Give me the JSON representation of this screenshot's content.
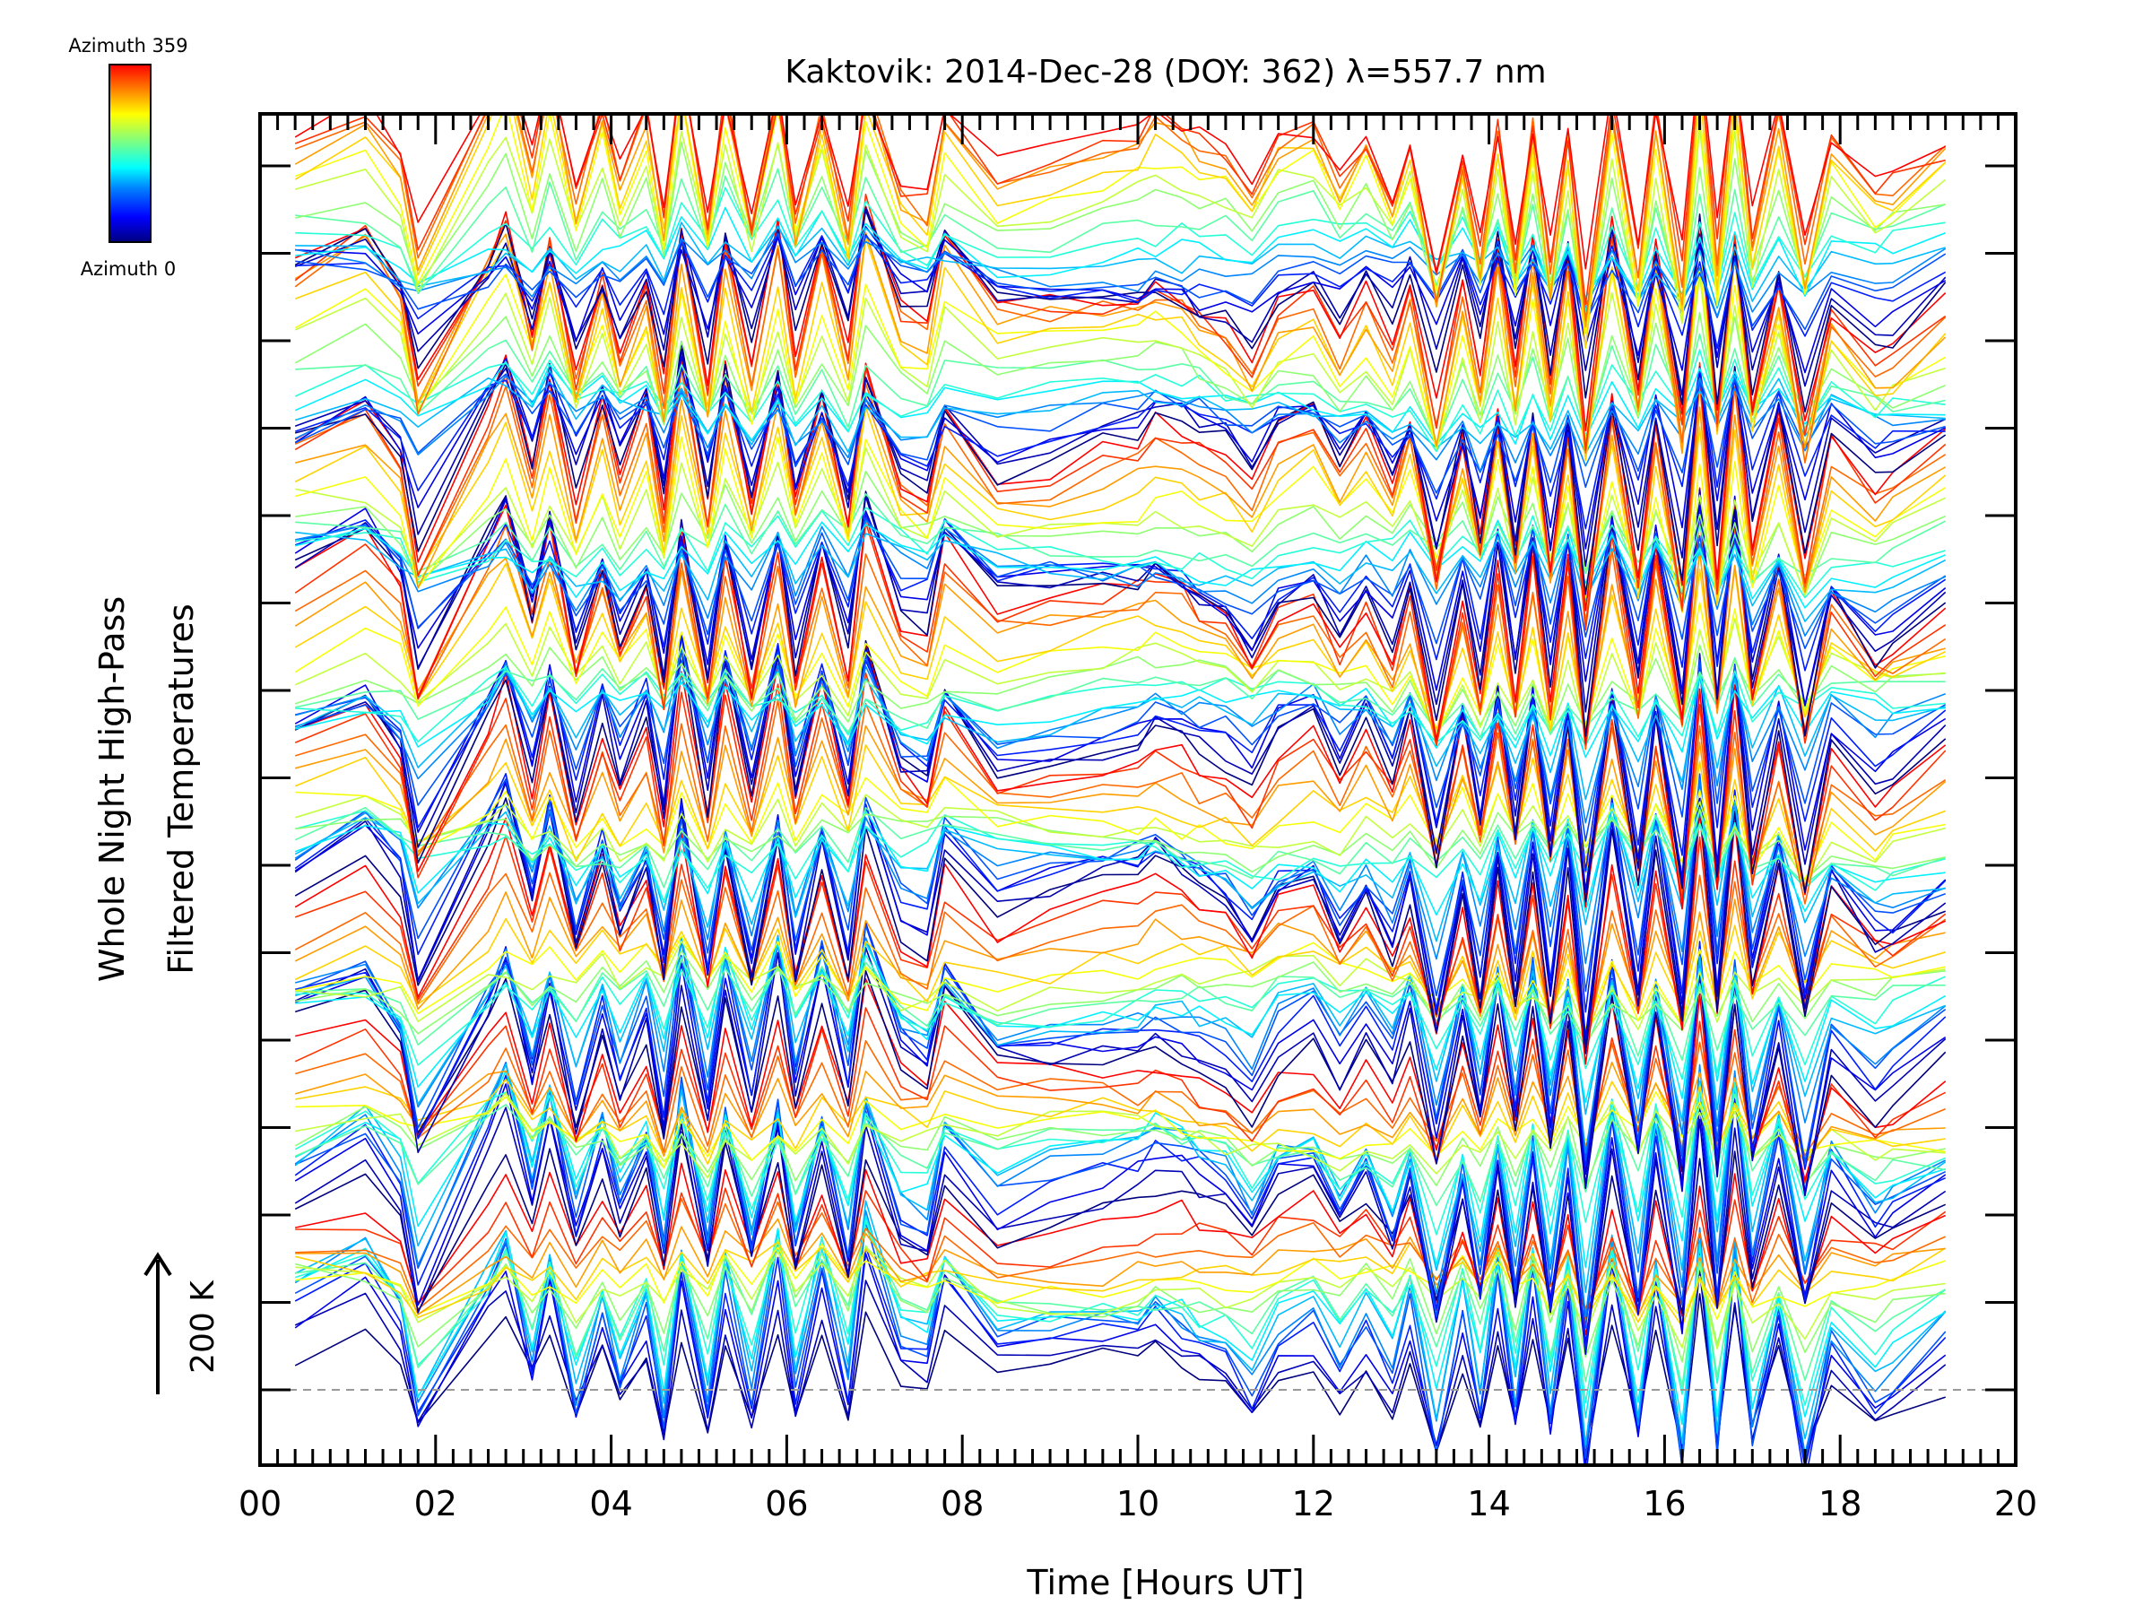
{
  "chart_data": {
    "type": "line",
    "title": "Kaktovik: 2014-Dec-28 (DOY: 362) λ=557.7 nm",
    "xlabel": "Time [Hours UT]",
    "ylabel_line1": "Whole Night High-Pass",
    "ylabel_line2": "Filtered Temperatures",
    "scale_label": "200 K",
    "xlim": [
      0,
      20
    ],
    "x_ticks": [
      "00",
      "02",
      "04",
      "06",
      "08",
      "10",
      "12",
      "14",
      "16",
      "18",
      "20"
    ],
    "y_offset_levels": 15,
    "colorbar": {
      "top_label": "Azimuth 359",
      "bottom_label": "Azimuth 0",
      "colormap": [
        "#00007f",
        "#0000ff",
        "#007fff",
        "#00ffff",
        "#7fff7f",
        "#ffff00",
        "#ff7f00",
        "#ff0000"
      ]
    },
    "series_count": 144,
    "series_start_hour": 0.4,
    "series_end_hour": 19.2,
    "sample_hours": [
      0.4,
      1.2,
      1.6,
      1.8,
      2.6,
      2.8,
      3.1,
      3.3,
      3.6,
      3.9,
      4.1,
      4.4,
      4.6,
      4.8,
      5.1,
      5.3,
      5.6,
      5.9,
      6.1,
      6.4,
      6.7,
      6.9,
      7.3,
      7.6,
      7.8,
      8.4,
      9.0,
      9.6,
      10.0,
      10.2,
      10.5,
      10.7,
      11.0,
      11.3,
      11.6,
      12.0,
      12.3,
      12.6,
      12.9,
      13.1,
      13.4,
      13.7,
      13.9,
      14.1,
      14.3,
      14.5,
      14.7,
      14.9,
      15.1,
      15.4,
      15.7,
      15.9,
      16.2,
      16.4,
      16.6,
      16.8,
      17.0,
      17.3,
      17.6,
      17.9,
      18.4,
      18.6,
      19.2
    ],
    "common_signal": [
      45,
      80,
      30,
      -65,
      70,
      110,
      5,
      90,
      -30,
      60,
      -10,
      55,
      -45,
      100,
      -40,
      85,
      -35,
      95,
      -30,
      80,
      -30,
      110,
      5,
      -10,
      75,
      10,
      20,
      30,
      35,
      50,
      40,
      25,
      15,
      -20,
      30,
      45,
      -5,
      40,
      -15,
      45,
      -85,
      40,
      -55,
      65,
      -60,
      70,
      -70,
      60,
      -110,
      85,
      -75,
      70,
      -95,
      110,
      -80,
      100,
      -65,
      55,
      -90,
      30,
      -20,
      -10,
      30
    ]
  }
}
